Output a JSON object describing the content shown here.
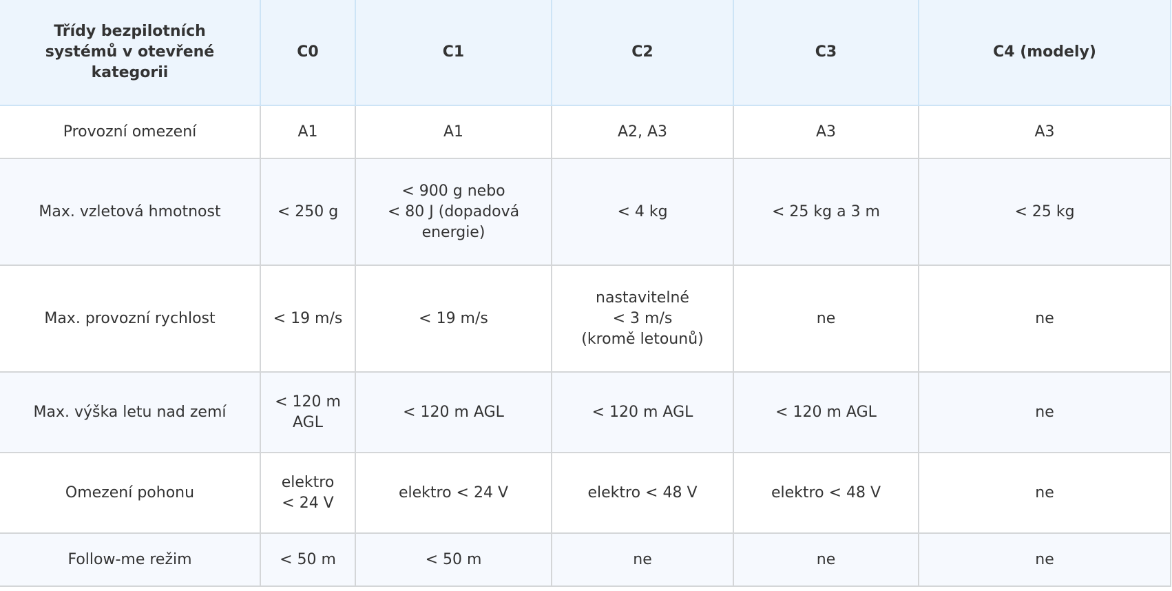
{
  "header": [
    "Třídy bezpilotních systémů v otevřené kategorii",
    "C0",
    "C1",
    "C2",
    "C3",
    "C4 (modely)"
  ],
  "rows": [
    {
      "label": "Provozní omezení",
      "cells": [
        "A1",
        "A1",
        "A2, A3",
        "A3",
        "A3"
      ]
    },
    {
      "label": "Max. vzletová hmotnost",
      "cells": [
        "< 250 g",
        "< 900 g nebo\n< 80 J (dopadová energie)",
        "< 4 kg",
        "< 25 kg a 3 m",
        "< 25 kg"
      ]
    },
    {
      "label": "Max. provozní rychlost",
      "cells": [
        "< 19 m/s",
        "< 19 m/s",
        "nastavitelné\n< 3 m/s\n(kromě letounů)",
        "ne",
        "ne"
      ]
    },
    {
      "label": "Max. výška letu nad zemí",
      "cells": [
        "< 120 m AGL",
        "< 120 m AGL",
        "< 120 m AGL",
        "< 120 m AGL",
        "ne"
      ]
    },
    {
      "label": "Omezení pohonu",
      "cells": [
        "elektro\n< 24 V",
        "elektro < 24 V",
        "elektro < 48 V",
        "elektro < 48 V",
        "ne"
      ]
    },
    {
      "label": "Follow-me režim",
      "cells": [
        "< 50 m",
        "< 50 m",
        "ne",
        "ne",
        "ne"
      ]
    }
  ]
}
